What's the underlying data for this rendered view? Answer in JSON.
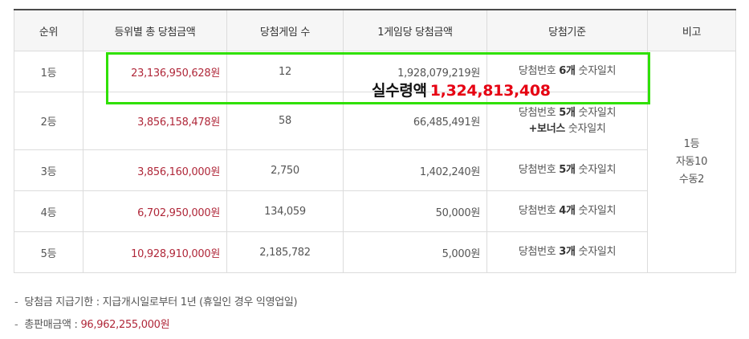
{
  "table": {
    "headers": [
      "순위",
      "등위별 총 당첨금액",
      "당첨게임 수",
      "1게임당 당첨금액",
      "당첨기준",
      "비고"
    ],
    "rows": [
      {
        "rank": "1등",
        "total": "23,136,950,628원",
        "count": "12",
        "per_game": "1,928,079,219원",
        "criteria_pre": "당첨번호 ",
        "criteria_bold": "6개",
        "criteria_post": " 숫자일치",
        "criteria_line2": ""
      },
      {
        "rank": "2등",
        "total": "3,856,158,478원",
        "count": "58",
        "per_game": "66,485,491원",
        "criteria_pre": "당첨번호 ",
        "criteria_bold": "5개",
        "criteria_post": " 숫자일치",
        "criteria_line2_bold": "+보너스",
        "criteria_line2_post": " 숫자일치"
      },
      {
        "rank": "3등",
        "total": "3,856,160,000원",
        "count": "2,750",
        "per_game": "1,402,240원",
        "criteria_pre": "당첨번호 ",
        "criteria_bold": "5개",
        "criteria_post": " 숫자일치"
      },
      {
        "rank": "4등",
        "total": "6,702,950,000원",
        "count": "134,059",
        "per_game": "50,000원",
        "criteria_pre": "당첨번호 ",
        "criteria_bold": "4개",
        "criteria_post": " 숫자일치"
      },
      {
        "rank": "5등",
        "total": "10,928,910,000원",
        "count": "2,185,782",
        "per_game": "5,000원",
        "criteria_pre": "당첨번호 ",
        "criteria_bold": "3개",
        "criteria_post": " 숫자일치"
      }
    ],
    "note": {
      "line1": "1등",
      "line2": "자동10",
      "line3": "수동2"
    }
  },
  "overlay": {
    "label": "실수령액",
    "value": "1,324,813,408",
    "box_color": "#2fe000",
    "value_color": "#e60012"
  },
  "notes": {
    "dash": "-",
    "deadline_label": "당첨금 지급기한 : ",
    "deadline_value": "지급개시일로부터 1년 (휴일인 경우 익영업일)",
    "sales_label": "총판매금액 : ",
    "sales_value": "96,962,255,000원"
  },
  "colors": {
    "amount_red": "#b0283a",
    "header_bg": "#f6f6f6",
    "border": "#dcdcdc"
  }
}
